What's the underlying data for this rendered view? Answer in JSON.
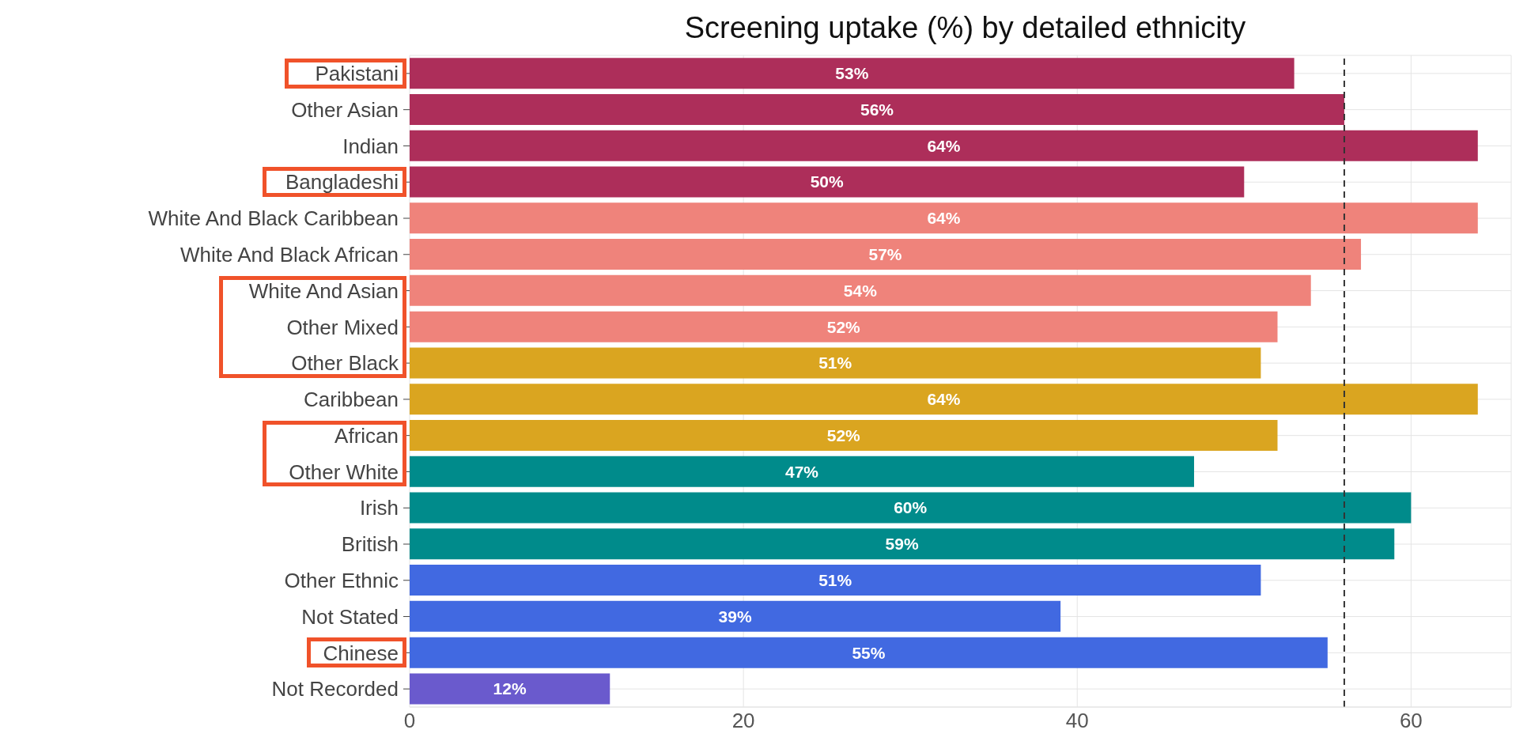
{
  "chart_data": {
    "type": "bar",
    "orientation": "horizontal",
    "title": "Screening uptake (%) by detailed ethnicity",
    "categories": [
      "Pakistani",
      "Other Asian",
      "Indian",
      "Bangladeshi",
      "White And Black Caribbean",
      "White And Black African",
      "White And Asian",
      "Other Mixed",
      "Other Black",
      "Caribbean",
      "African",
      "Other White",
      "Irish",
      "British",
      "Other Ethnic",
      "Not Stated",
      "Chinese",
      "Not Recorded"
    ],
    "values": [
      53,
      56,
      64,
      50,
      64,
      57,
      54,
      52,
      51,
      64,
      52,
      47,
      60,
      59,
      51,
      39,
      55,
      12
    ],
    "value_labels": [
      "53%",
      "56%",
      "64%",
      "50%",
      "64%",
      "57%",
      "54%",
      "52%",
      "51%",
      "64%",
      "52%",
      "47%",
      "60%",
      "59%",
      "51%",
      "39%",
      "55%",
      "12%"
    ],
    "colors": [
      "#ad2e5a",
      "#ad2e5a",
      "#ad2e5a",
      "#ad2e5a",
      "#ef837b",
      "#ef837b",
      "#ef837b",
      "#ef837b",
      "#daa520",
      "#daa520",
      "#daa520",
      "#008b8b",
      "#008b8b",
      "#008b8b",
      "#4169e1",
      "#4169e1",
      "#4169e1",
      "#6a5acd"
    ],
    "xlim": [
      0,
      66
    ],
    "xticks": [
      0,
      20,
      40,
      60
    ],
    "ref_lines": [
      {
        "axis": "x",
        "value": 56,
        "line_style": "dashed",
        "color": "#333333"
      }
    ],
    "grid": true
  }
}
